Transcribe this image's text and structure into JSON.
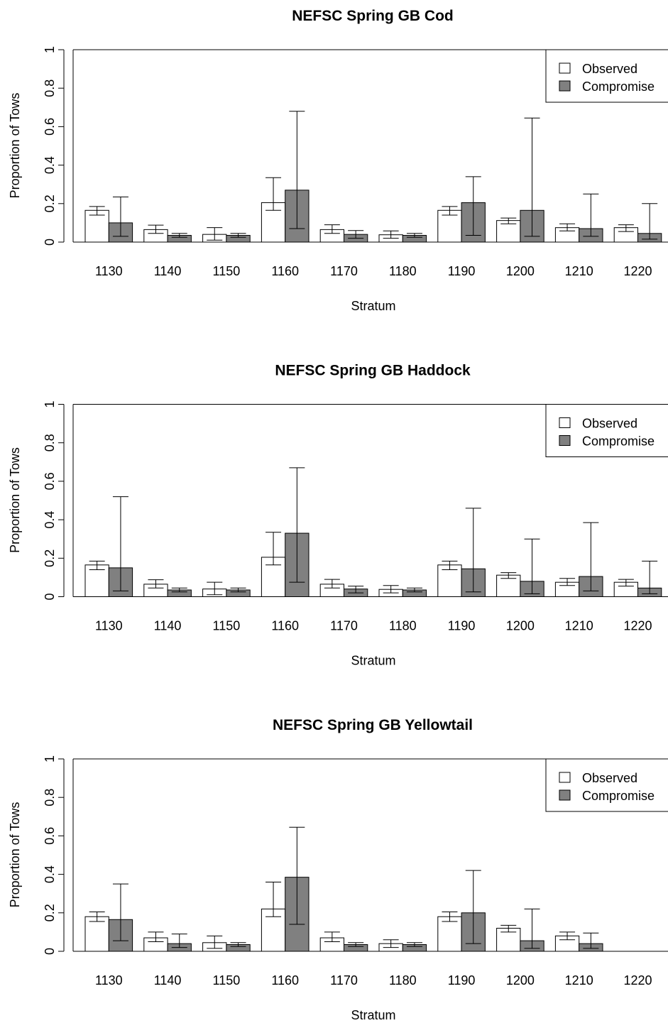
{
  "chart_data": [
    {
      "type": "bar",
      "title": "NEFSC Spring GB Cod",
      "xlabel": "Stratum",
      "ylabel": "Proportion of Tows",
      "ylim": [
        0,
        1
      ],
      "yticks": [
        "0",
        "0.2",
        "0.4",
        "0.6",
        "0.8",
        "1"
      ],
      "categories": [
        "1130",
        "1140",
        "1150",
        "1160",
        "1170",
        "1180",
        "1190",
        "1200",
        "1210",
        "1220"
      ],
      "legend_position": "top-right",
      "series": [
        {
          "name": "Observed",
          "color": "#ffffff",
          "values": [
            0.165,
            0.065,
            0.04,
            0.205,
            0.065,
            0.038,
            0.165,
            0.112,
            0.075,
            0.075
          ],
          "err_low": [
            0.14,
            0.045,
            0.01,
            0.165,
            0.045,
            0.02,
            0.14,
            0.095,
            0.058,
            0.055
          ],
          "err_high": [
            0.185,
            0.088,
            0.075,
            0.335,
            0.09,
            0.058,
            0.185,
            0.125,
            0.095,
            0.09
          ]
        },
        {
          "name": "Compromise",
          "color": "#808080",
          "values": [
            0.1,
            0.035,
            0.035,
            0.27,
            0.04,
            0.035,
            0.205,
            0.165,
            0.07,
            0.045
          ],
          "err_low": [
            0.03,
            0.025,
            0.025,
            0.07,
            0.02,
            0.025,
            0.035,
            0.03,
            0.03,
            0.015
          ],
          "err_high": [
            0.235,
            0.045,
            0.045,
            0.68,
            0.06,
            0.045,
            0.34,
            0.645,
            0.25,
            0.2
          ]
        }
      ]
    },
    {
      "type": "bar",
      "title": "NEFSC Spring GB Haddock",
      "xlabel": "Stratum",
      "ylabel": "Proportion of Tows",
      "ylim": [
        0,
        1
      ],
      "yticks": [
        "0",
        "0.2",
        "0.4",
        "0.6",
        "0.8",
        "1"
      ],
      "categories": [
        "1130",
        "1140",
        "1150",
        "1160",
        "1170",
        "1180",
        "1190",
        "1200",
        "1210",
        "1220"
      ],
      "legend_position": "top-right",
      "series": [
        {
          "name": "Observed",
          "color": "#ffffff",
          "values": [
            0.165,
            0.065,
            0.04,
            0.205,
            0.065,
            0.038,
            0.165,
            0.112,
            0.075,
            0.075
          ],
          "err_low": [
            0.14,
            0.045,
            0.01,
            0.165,
            0.045,
            0.02,
            0.14,
            0.095,
            0.058,
            0.055
          ],
          "err_high": [
            0.185,
            0.088,
            0.075,
            0.335,
            0.09,
            0.058,
            0.185,
            0.125,
            0.095,
            0.09
          ]
        },
        {
          "name": "Compromise",
          "color": "#808080",
          "values": [
            0.15,
            0.035,
            0.035,
            0.33,
            0.04,
            0.035,
            0.145,
            0.08,
            0.105,
            0.045
          ],
          "err_low": [
            0.03,
            0.025,
            0.025,
            0.075,
            0.02,
            0.025,
            0.025,
            0.015,
            0.03,
            0.015
          ],
          "err_high": [
            0.52,
            0.045,
            0.045,
            0.67,
            0.055,
            0.045,
            0.46,
            0.3,
            0.385,
            0.185
          ]
        }
      ]
    },
    {
      "type": "bar",
      "title": "NEFSC Spring GB Yellowtail",
      "xlabel": "Stratum",
      "ylabel": "Proportion of Tows",
      "ylim": [
        0,
        1
      ],
      "yticks": [
        "0",
        "0.2",
        "0.4",
        "0.6",
        "0.8",
        "1"
      ],
      "categories": [
        "1130",
        "1140",
        "1150",
        "1160",
        "1170",
        "1180",
        "1190",
        "1200",
        "1210",
        "1220"
      ],
      "legend_position": "top-right",
      "series": [
        {
          "name": "Observed",
          "color": "#ffffff",
          "values": [
            0.18,
            0.07,
            0.045,
            0.22,
            0.07,
            0.04,
            0.18,
            0.12,
            0.08,
            null
          ],
          "err_low": [
            0.155,
            0.05,
            0.015,
            0.18,
            0.05,
            0.02,
            0.155,
            0.1,
            0.06,
            null
          ],
          "err_high": [
            0.205,
            0.1,
            0.08,
            0.36,
            0.1,
            0.06,
            0.205,
            0.135,
            0.1,
            null
          ]
        },
        {
          "name": "Compromise",
          "color": "#808080",
          "values": [
            0.165,
            0.04,
            0.035,
            0.385,
            0.035,
            0.035,
            0.2,
            0.055,
            0.04,
            null
          ],
          "err_low": [
            0.055,
            0.02,
            0.025,
            0.14,
            0.025,
            0.025,
            0.04,
            0.015,
            0.015,
            null
          ],
          "err_high": [
            0.35,
            0.09,
            0.045,
            0.645,
            0.045,
            0.045,
            0.42,
            0.22,
            0.095,
            null
          ]
        }
      ]
    }
  ]
}
